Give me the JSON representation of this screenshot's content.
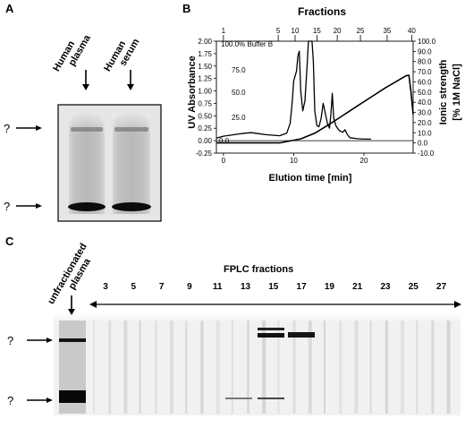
{
  "panels": {
    "a": "A",
    "b": "B",
    "c": "C"
  },
  "panel_a": {
    "lane_labels": [
      [
        "Human",
        "plasma"
      ],
      [
        "Human",
        "serum"
      ]
    ],
    "band_markers": [
      "?",
      "?"
    ]
  },
  "panel_b": {
    "title": "Fractions",
    "ylabel_left": "UV Absorbance",
    "ylabel_right_1": "Ionic strength",
    "ylabel_right_2": "[% 1M NaCl]",
    "xlabel": "Elution time [min]",
    "buffer_label": "100.0% Buffer B",
    "inner_left_ticks": [
      "75.0",
      "50.0",
      "25.0",
      "0.0"
    ]
  },
  "panel_c": {
    "lane_label": [
      "unfractionated",
      "plasma"
    ],
    "header": "FPLC fractions",
    "fractions": [
      "3",
      "5",
      "7",
      "9",
      "11",
      "13",
      "15",
      "17",
      "19",
      "21",
      "23",
      "25",
      "27"
    ],
    "band_markers": [
      "?",
      "?"
    ]
  },
  "chart_data": {
    "type": "line",
    "title": "Fractions",
    "xlabel": "Elution time [min]",
    "ylabel": "UV Absorbance",
    "ylabel_right": "Ionic strength [% 1M NaCl]",
    "xlim": [
      -1,
      27
    ],
    "ylim": [
      -0.25,
      2.0
    ],
    "ylim_right": [
      -10,
      100
    ],
    "x_ticks": [
      0,
      10,
      20
    ],
    "y_ticks": [
      -0.25,
      0.0,
      0.25,
      0.5,
      0.75,
      1.0,
      1.25,
      1.5,
      1.75,
      2.0
    ],
    "y_tick_labels": [
      "-0.25",
      "0.00",
      "0.25",
      "0.50",
      "0.75",
      "1.00",
      "1.25",
      "1.50",
      "1.75",
      "2.00"
    ],
    "y_right_ticks": [
      -10,
      0,
      10,
      20,
      30,
      40,
      50,
      60,
      70,
      80,
      90,
      100
    ],
    "y_right_tick_labels": [
      "-10.0",
      "0.0",
      "10.0",
      "20.0",
      "30.0",
      "40.0",
      "50.0",
      "60.0",
      "70.0",
      "80.0",
      "90.0",
      "100.0"
    ],
    "fraction_ticks": [
      {
        "fraction": "1",
        "x": 0.0
      },
      {
        "fraction": "5",
        "x": 7.8
      },
      {
        "fraction": "10",
        "x": 10.2
      },
      {
        "fraction": "15",
        "x": 13.3
      },
      {
        "fraction": "20",
        "x": 16.2
      },
      {
        "fraction": "25",
        "x": 19.5
      },
      {
        "fraction": "35",
        "x": 23.3
      },
      {
        "fraction": "40",
        "x": 26.8
      }
    ],
    "series": [
      {
        "values": [
          [
            -1,
            0.05
          ],
          [
            0,
            0.09
          ],
          [
            1,
            0.11
          ],
          [
            2,
            0.13
          ],
          [
            3,
            0.15
          ],
          [
            4,
            0.16
          ],
          [
            5,
            0.14
          ],
          [
            6,
            0.12
          ],
          [
            7,
            0.11
          ],
          [
            8,
            0.1
          ],
          [
            9,
            0.15
          ],
          [
            9.5,
            0.35
          ],
          [
            9.8,
            0.8
          ],
          [
            10.0,
            1.2
          ],
          [
            10.2,
            1.3
          ],
          [
            10.4,
            1.4
          ],
          [
            10.6,
            1.7
          ],
          [
            10.8,
            1.8
          ],
          [
            11.0,
            1.0
          ],
          [
            11.3,
            0.6
          ],
          [
            11.6,
            0.8
          ],
          [
            11.9,
            1.5
          ],
          [
            12.1,
            2.0
          ],
          [
            12.6,
            2.0
          ],
          [
            12.8,
            1.6
          ],
          [
            13.0,
            0.6
          ],
          [
            13.3,
            0.3
          ],
          [
            13.6,
            0.28
          ],
          [
            13.9,
            0.45
          ],
          [
            14.2,
            0.75
          ],
          [
            14.5,
            0.55
          ],
          [
            14.8,
            0.35
          ],
          [
            15.1,
            0.25
          ],
          [
            15.3,
            0.55
          ],
          [
            15.5,
            0.95
          ],
          [
            15.7,
            0.45
          ],
          [
            16.0,
            0.3
          ],
          [
            16.5,
            0.2
          ],
          [
            17.0,
            0.17
          ],
          [
            17.3,
            0.22
          ],
          [
            17.6,
            0.13
          ],
          [
            18.0,
            0.06
          ],
          [
            19.0,
            0.04
          ],
          [
            20,
            0.03
          ],
          [
            21,
            0.03
          ]
        ]
      },
      {
        "axis": "right",
        "values": [
          [
            -1,
            0.0
          ],
          [
            0,
            0.0
          ],
          [
            8.0,
            0.0
          ],
          [
            11.0,
            4.0
          ],
          [
            13.0,
            9.5
          ],
          [
            15.0,
            18.0
          ],
          [
            17.0,
            27.0
          ],
          [
            19.0,
            36.0
          ],
          [
            21.0,
            45.0
          ],
          [
            23.0,
            54.0
          ],
          [
            25.0,
            62.0
          ],
          [
            26.0,
            66.0
          ],
          [
            26.4,
            66.5
          ],
          [
            26.7,
            50.0
          ],
          [
            27.0,
            28.0
          ]
        ]
      }
    ]
  }
}
